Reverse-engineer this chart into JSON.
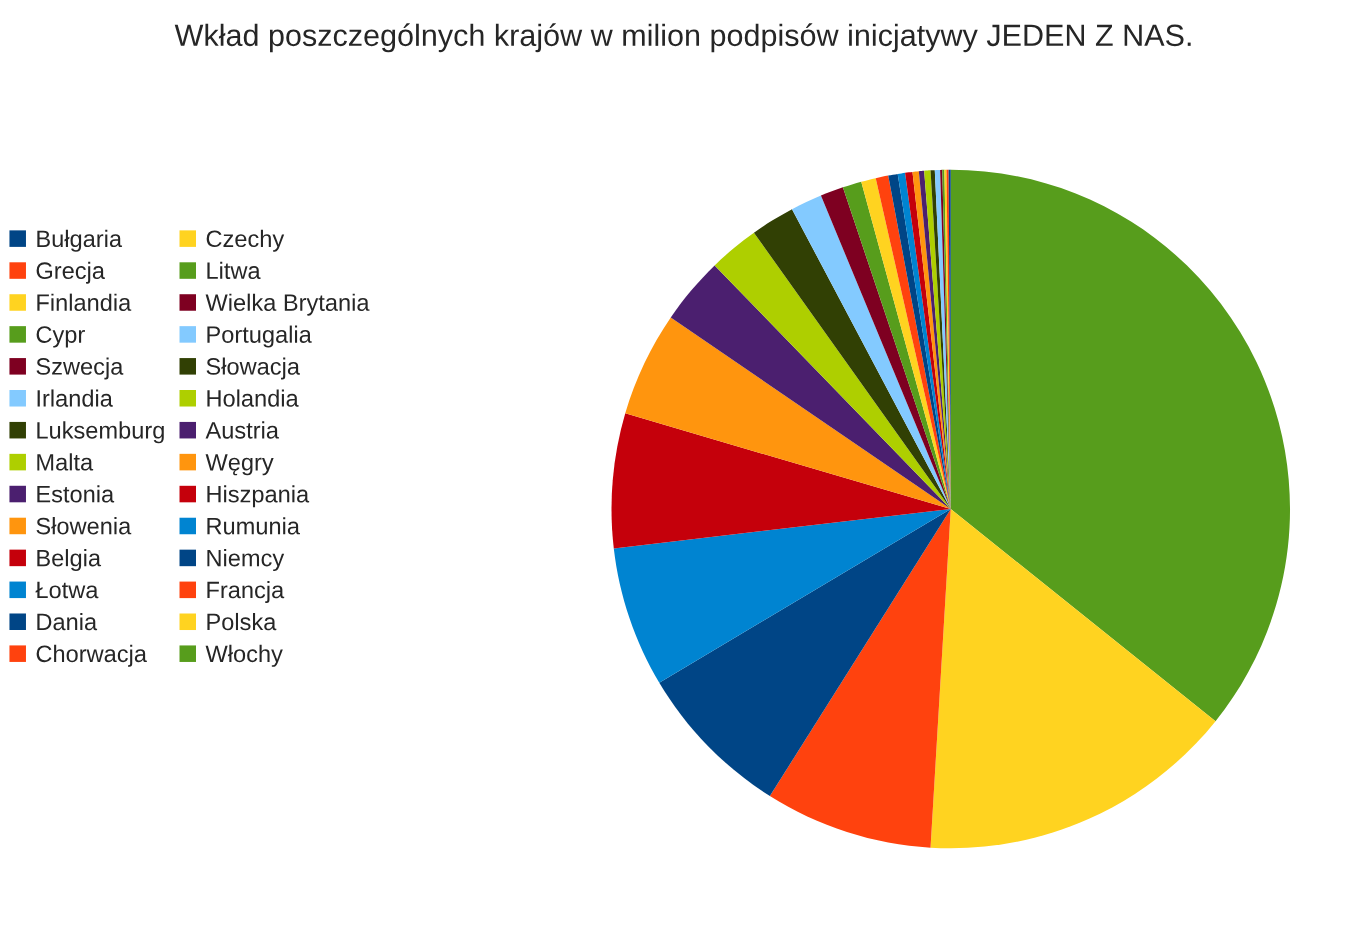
{
  "chart_data": {
    "type": "pie",
    "title": "Wkład poszczególnych krajów w milion podpisów inicjatywy JEDEN Z NAS.",
    "categories": [
      "Włochy",
      "Polska",
      "Francja",
      "Niemcy",
      "Rumunia",
      "Hiszpania",
      "Węgry",
      "Austria",
      "Holandia",
      "Słowacja",
      "Portugalia",
      "Wielka Brytania",
      "Litwa",
      "Czechy",
      "Chorwacja",
      "Dania",
      "Łotwa",
      "Belgia",
      "Słowenia",
      "Estonia",
      "Malta",
      "Luksemburg",
      "Irlandia",
      "Szwecja",
      "Cypr",
      "Finlandia",
      "Grecja",
      "Bułgaria"
    ],
    "values": [
      35.75,
      15.2,
      8.0,
      7.5,
      6.7,
      6.4,
      5.0,
      3.2,
      2.4,
      2.1,
      1.5,
      1.1,
      0.9,
      0.7,
      0.6,
      0.45,
      0.35,
      0.35,
      0.3,
      0.25,
      0.3,
      0.2,
      0.25,
      0.1,
      0.1,
      0.1,
      0.1,
      0.1
    ],
    "colors": [
      "#579d1c",
      "#ffd320",
      "#ff420e",
      "#004586",
      "#0084d1",
      "#c5000b",
      "#ff950e",
      "#4b1f6f",
      "#aecf00",
      "#314004",
      "#83caff",
      "#7e0021",
      "#579d1c",
      "#ffd320",
      "#ff420e",
      "#004586",
      "#0084d1",
      "#c5000b",
      "#ff950e",
      "#4b1f6f",
      "#aecf00",
      "#314004",
      "#83caff",
      "#7e0021",
      "#579d1c",
      "#ffd320",
      "#ff420e",
      "#004586"
    ],
    "legend": "left"
  }
}
